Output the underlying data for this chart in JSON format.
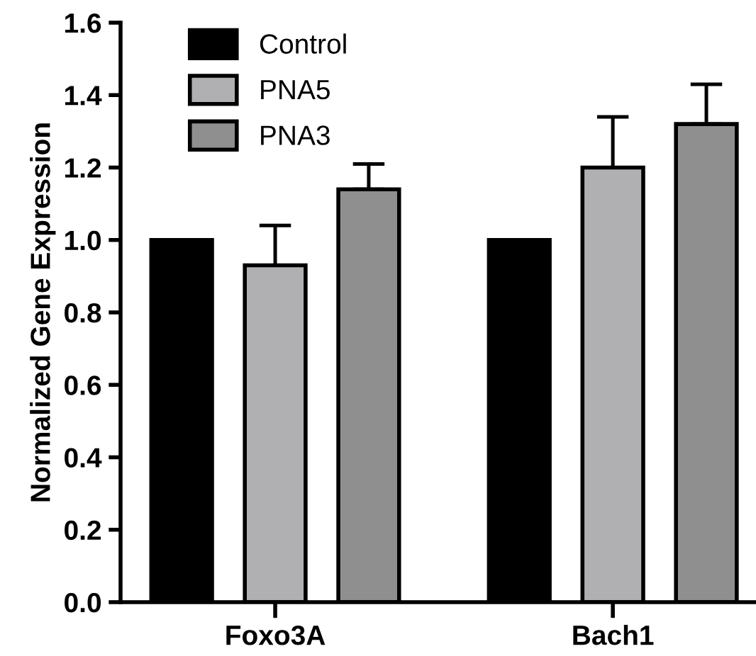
{
  "chart_data": {
    "type": "bar",
    "ylabel": "Normalized Gene Expression",
    "categories": [
      "Foxo3A",
      "Bach1"
    ],
    "series": [
      {
        "name": "Control",
        "color": "#000000",
        "values": [
          1.0,
          1.0
        ]
      },
      {
        "name": "PNA5",
        "color": "#b0b0b2",
        "values": [
          0.93,
          1.2
        ],
        "errors": [
          [
            0.93,
            1.04
          ],
          [
            1.2,
            1.34
          ]
        ]
      },
      {
        "name": "PNA3",
        "color": "#8f8f8f",
        "values": [
          1.14,
          1.32
        ],
        "errors": [
          [
            1.14,
            1.21
          ],
          [
            1.32,
            1.43
          ]
        ]
      }
    ],
    "ylim": [
      0,
      1.6
    ],
    "yticks": [
      {
        "value": 0,
        "label": "0.0"
      },
      {
        "value": 0.2,
        "label": "0.2"
      },
      {
        "value": 0.4,
        "label": "0.4"
      },
      {
        "value": 0.6,
        "label": "0.6"
      },
      {
        "value": 0.8,
        "label": "0.8"
      },
      {
        "value": 1.0,
        "label": "1.0"
      },
      {
        "value": 1.2,
        "label": "1.2"
      },
      {
        "value": 1.4,
        "label": "1.4"
      },
      {
        "value": 1.6,
        "label": "1.6"
      }
    ],
    "grid": false,
    "legend": "top left"
  }
}
